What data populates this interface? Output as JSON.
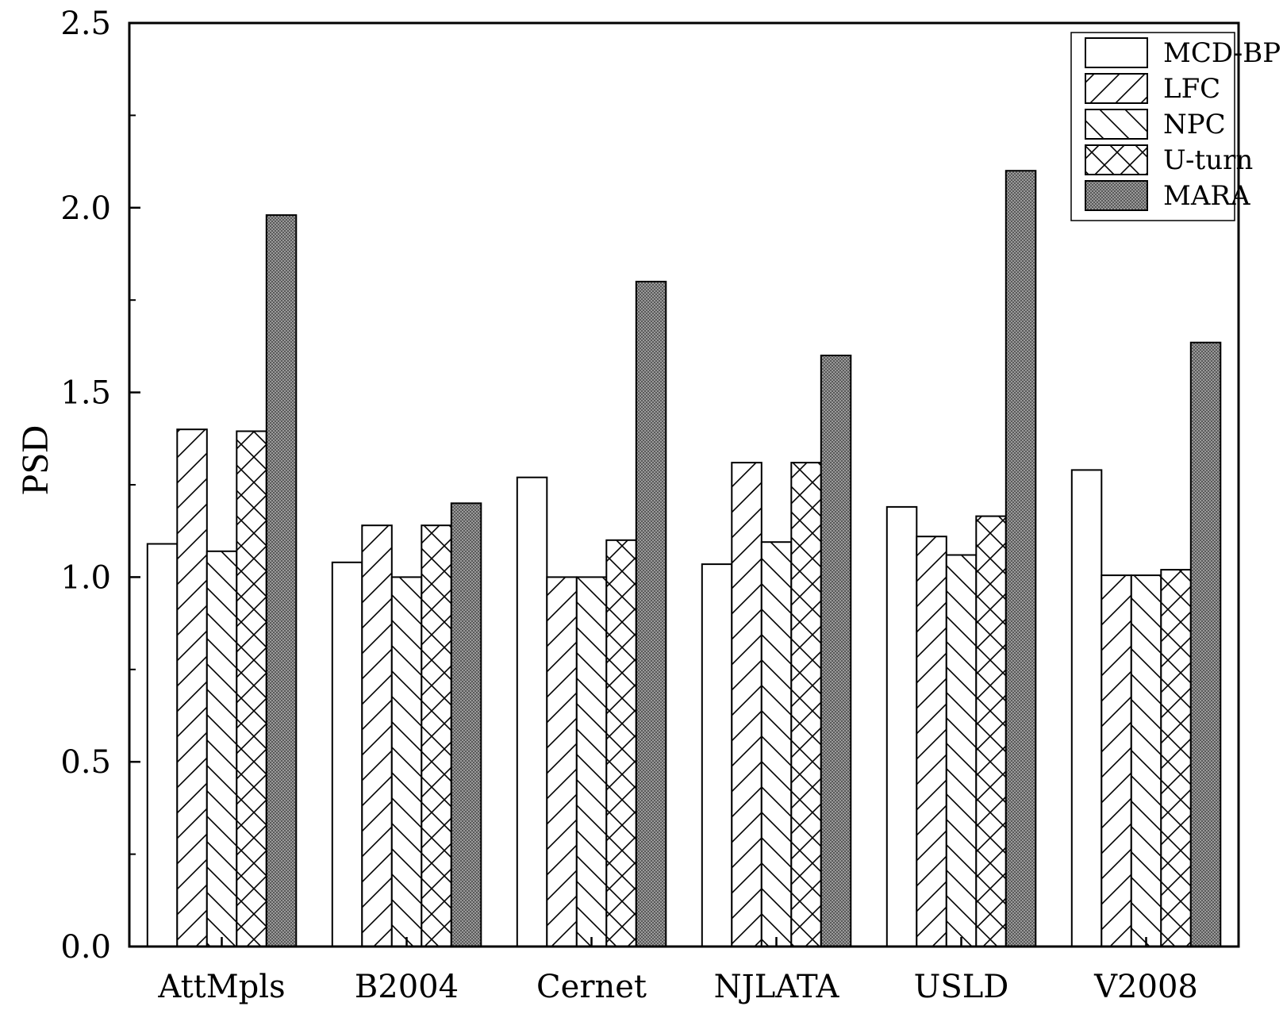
{
  "chart_data": {
    "type": "bar",
    "title": "",
    "xlabel": "",
    "ylabel": "PSD",
    "ylim": [
      0,
      2.5
    ],
    "yticks": [
      "0.0",
      "0.5",
      "1.0",
      "1.5",
      "2.0",
      "2.5"
    ],
    "categories": [
      "AttMpls",
      "B2004",
      "Cernet",
      "NJLATA",
      "USLD",
      "V2008"
    ],
    "series": [
      {
        "name": "MCD-BP",
        "pattern": "none",
        "values": [
          1.09,
          1.04,
          1.27,
          1.035,
          1.19,
          1.29
        ]
      },
      {
        "name": "LFC",
        "pattern": "forward-hatch",
        "values": [
          1.4,
          1.14,
          1.0,
          1.31,
          1.11,
          1.005
        ]
      },
      {
        "name": "NPC",
        "pattern": "back-hatch",
        "values": [
          1.07,
          1.0,
          1.0,
          1.095,
          1.06,
          1.005
        ]
      },
      {
        "name": "U-turn",
        "pattern": "cross-hatch",
        "values": [
          1.395,
          1.14,
          1.1,
          1.31,
          1.165,
          1.02
        ]
      },
      {
        "name": "MARA",
        "pattern": "dense-grey",
        "values": [
          1.98,
          1.2,
          1.8,
          1.6,
          2.1,
          1.635
        ]
      }
    ],
    "legend_position": "top-right",
    "grid": false,
    "colors": {
      "stroke": "#000000",
      "fill": "#ffffff",
      "dense": "#8c8c8c"
    }
  }
}
